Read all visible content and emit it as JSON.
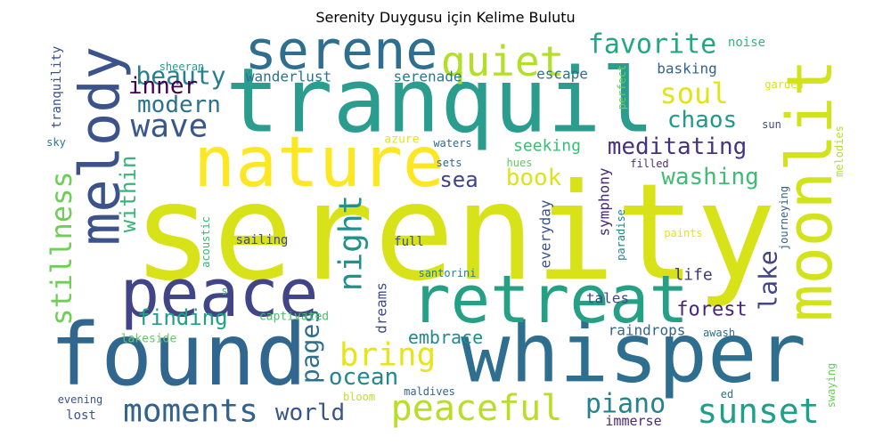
{
  "chart_data": {
    "type": "wordcloud",
    "title": "Serenity Duygusu için Kelime Bulutu",
    "palette": "viridis",
    "words": [
      {
        "text": "serenity",
        "color": "#d8e219"
      },
      {
        "text": "tranquil",
        "color": "#2a9d8e"
      },
      {
        "text": "whisper",
        "color": "#2e6e8e"
      },
      {
        "text": "found",
        "color": "#31678e"
      },
      {
        "text": "nature",
        "color": "#fde725"
      },
      {
        "text": "peace",
        "color": "#414487"
      },
      {
        "text": "retreat",
        "color": "#25a085"
      },
      {
        "text": "moonlit",
        "color": "#d2e21b"
      },
      {
        "text": "serene",
        "color": "#2e6e8e"
      },
      {
        "text": "melody",
        "color": "#3b528b"
      },
      {
        "text": "quiet",
        "color": "#b5de2b"
      },
      {
        "text": "peaceful",
        "color": "#b8de29"
      },
      {
        "text": "sunset",
        "color": "#1f9e89"
      },
      {
        "text": "moments",
        "color": "#33628d"
      },
      {
        "text": "night",
        "color": "#21918c"
      },
      {
        "text": "bring",
        "color": "#e7e419"
      },
      {
        "text": "wave",
        "color": "#38588c"
      },
      {
        "text": "stillness",
        "color": "#6ece58"
      },
      {
        "text": "soul",
        "color": "#e2e418"
      },
      {
        "text": "favorite",
        "color": "#22a785"
      },
      {
        "text": "beauty",
        "color": "#277f8e"
      },
      {
        "text": "meditating",
        "color": "#46337e"
      },
      {
        "text": "pages",
        "color": "#2e6f8e"
      },
      {
        "text": "lake",
        "color": "#404688"
      },
      {
        "text": "piano",
        "color": "#26828e"
      },
      {
        "text": "world",
        "color": "#39568c"
      },
      {
        "text": "washing",
        "color": "#3fbc73"
      },
      {
        "text": "ocean",
        "color": "#23888e"
      },
      {
        "text": "chaos",
        "color": "#1e9b8a"
      },
      {
        "text": "modern",
        "color": "#2d718e"
      },
      {
        "text": "book",
        "color": "#dde318"
      },
      {
        "text": "finding",
        "color": "#1fa187"
      },
      {
        "text": "inner",
        "color": "#440154"
      },
      {
        "text": "sea",
        "color": "#404387"
      },
      {
        "text": "within",
        "color": "#35b779"
      },
      {
        "text": "forest",
        "color": "#482677"
      },
      {
        "text": "embrace",
        "color": "#238a8d"
      },
      {
        "text": "symphony",
        "color": "#482878"
      },
      {
        "text": "seeking",
        "color": "#3dbc74"
      },
      {
        "text": "life",
        "color": "#453781"
      },
      {
        "text": "wanderlust",
        "color": "#2c718e"
      },
      {
        "text": "serenade",
        "color": "#2a788e"
      },
      {
        "text": "tales",
        "color": "#3f4889"
      },
      {
        "text": "basking",
        "color": "#33638d"
      },
      {
        "text": "escape",
        "color": "#2c728e"
      },
      {
        "text": "raindrops",
        "color": "#33638d"
      },
      {
        "text": "dreams",
        "color": "#3e4c8a"
      },
      {
        "text": "everyday",
        "color": "#3a548c"
      },
      {
        "text": "noise",
        "color": "#35b779"
      },
      {
        "text": "tranquility",
        "color": "#3b528b"
      },
      {
        "text": "sheeran",
        "color": "#2a9d8e"
      },
      {
        "text": "sailing",
        "color": "#3f4a8a"
      },
      {
        "text": "full",
        "color": "#39568c"
      },
      {
        "text": "santorini",
        "color": "#26828e"
      },
      {
        "text": "captivated",
        "color": "#4ac16d"
      },
      {
        "text": "lakeside",
        "color": "#5ec962"
      },
      {
        "text": "acoustic",
        "color": "#35b779"
      },
      {
        "text": "waters",
        "color": "#31688e"
      },
      {
        "text": "sets",
        "color": "#31688e"
      },
      {
        "text": "hues",
        "color": "#5ec962"
      },
      {
        "text": "azure",
        "color": "#e5e419"
      },
      {
        "text": "filled",
        "color": "#46337e"
      },
      {
        "text": "paints",
        "color": "#e5e419"
      },
      {
        "text": "paradise",
        "color": "#26828e"
      },
      {
        "text": "journeying",
        "color": "#33638d"
      },
      {
        "text": "perfect",
        "color": "#6ece58"
      },
      {
        "text": "garden",
        "color": "#d8e219"
      },
      {
        "text": "sun",
        "color": "#3e4a89"
      },
      {
        "text": "melodies",
        "color": "#b5de2b"
      },
      {
        "text": "sky",
        "color": "#2a788e"
      },
      {
        "text": "awash",
        "color": "#2d708e"
      },
      {
        "text": "evening",
        "color": "#3b528b"
      },
      {
        "text": "lost",
        "color": "#3b528b"
      },
      {
        "text": "bloom",
        "color": "#c0df25"
      },
      {
        "text": "maldives",
        "color": "#31688e"
      },
      {
        "text": "immerse",
        "color": "#482878"
      },
      {
        "text": "ed",
        "color": "#2c728e"
      },
      {
        "text": "swaying",
        "color": "#6ece58"
      },
      {
        "text": "s",
        "color": "#35b779"
      }
    ]
  }
}
